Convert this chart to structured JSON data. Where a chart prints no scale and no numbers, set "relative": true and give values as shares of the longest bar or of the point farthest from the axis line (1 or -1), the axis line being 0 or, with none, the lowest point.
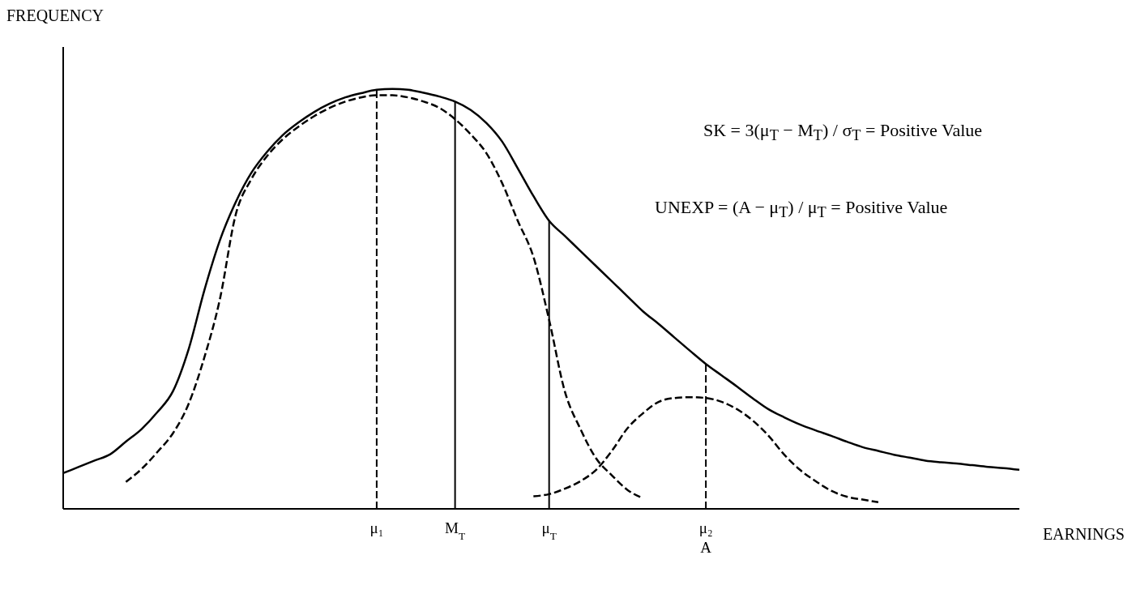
{
  "chart_data": {
    "type": "line",
    "relative": true,
    "xlabel": "EARNINGS",
    "ylabel": "FREQUENCY",
    "marker": "none",
    "categories": [
      null,
      null,
      null,
      null,
      null,
      null,
      null,
      null,
      null,
      null,
      null,
      null,
      null,
      null,
      null,
      null,
      null,
      null,
      null,
      null,
      "μ₁",
      null,
      null,
      null,
      null,
      "M$_{T}$",
      null,
      null,
      null,
      null,
      null,
      "μ$_{T}$",
      null,
      null,
      null,
      null,
      null,
      null,
      null,
      null,
      null,
      "μ₂\nA",
      null,
      null,
      null,
      null,
      null,
      null,
      null,
      null,
      null,
      null,
      null,
      null,
      null,
      null,
      null,
      null,
      null,
      null,
      null,
      null
    ],
    "series": [
      {
        "color": "#000000",
        "line_style": "solid",
        "values": [
          0.085,
          0.1,
          0.115,
          0.13,
          0.16,
          0.19,
          0.23,
          0.28,
          0.38,
          0.52,
          0.64,
          0.73,
          0.8,
          0.85,
          0.89,
          0.92,
          0.945,
          0.965,
          0.98,
          0.99,
          0.998,
          1.0,
          0.998,
          0.991,
          0.982,
          0.97,
          0.95,
          0.919,
          0.875,
          0.811,
          0.745,
          0.686,
          0.65,
          0.614,
          0.578,
          0.542,
          0.506,
          0.47,
          0.44,
          0.408,
          0.376,
          0.345,
          0.318,
          0.291,
          0.263,
          0.237,
          0.218,
          0.201,
          0.187,
          0.174,
          0.16,
          0.147,
          0.138,
          0.129,
          0.122,
          0.115,
          0.111,
          0.108,
          0.104,
          0.1,
          0.097,
          0.093
        ]
      },
      {
        "color": "#000000",
        "line_style": "dashed",
        "values": [
          null,
          null,
          null,
          null,
          0.064,
          0.095,
          0.135,
          0.18,
          0.25,
          0.36,
          0.5,
          0.7,
          0.785,
          0.84,
          0.88,
          0.91,
          0.935,
          0.955,
          0.97,
          0.98,
          0.985,
          0.985,
          0.98,
          0.97,
          0.955,
          0.928,
          0.892,
          0.847,
          0.776,
          0.686,
          0.6,
          0.45,
          0.28,
          0.19,
          0.12,
          0.08,
          0.045,
          0.025,
          null,
          null,
          null,
          null,
          null,
          null,
          null,
          null,
          null,
          null,
          null,
          null,
          null,
          null,
          null,
          null,
          null,
          null,
          null,
          null,
          null,
          null,
          null,
          null
        ]
      },
      {
        "color": "#000000",
        "line_style": "dashed",
        "values": [
          null,
          null,
          null,
          null,
          null,
          null,
          null,
          null,
          null,
          null,
          null,
          null,
          null,
          null,
          null,
          null,
          null,
          null,
          null,
          null,
          null,
          null,
          null,
          null,
          null,
          null,
          null,
          null,
          null,
          null,
          0.03,
          0.035,
          0.048,
          0.066,
          0.093,
          0.138,
          0.192,
          0.228,
          0.255,
          0.264,
          0.266,
          0.264,
          0.255,
          0.237,
          0.21,
          0.174,
          0.129,
          0.093,
          0.066,
          0.043,
          0.029,
          0.022,
          0.016,
          null,
          null,
          null,
          null,
          null,
          null,
          null,
          null,
          null
        ]
      }
    ],
    "ref_lines": [
      {
        "axis": "x",
        "value": "μ₁",
        "color": "#000000",
        "line_style": "dashed"
      },
      {
        "axis": "x",
        "value": "M$_{T}$",
        "color": "#000000",
        "line_style": "solid"
      },
      {
        "axis": "x",
        "value": "μ$_{T}$",
        "color": "#000000",
        "line_style": "solid"
      },
      {
        "axis": "x",
        "value": "μ₂\nA",
        "color": "#000000",
        "line_style": "dashed"
      }
    ],
    "annotations": [
      "SK = 3(μ$_{T}$ − M$_{T}$) / σ$_{T}$ = Positive Value",
      "UNEXP = (A − μ$_{T}$) / μ$_{T}$ = Positive Value"
    ]
  }
}
